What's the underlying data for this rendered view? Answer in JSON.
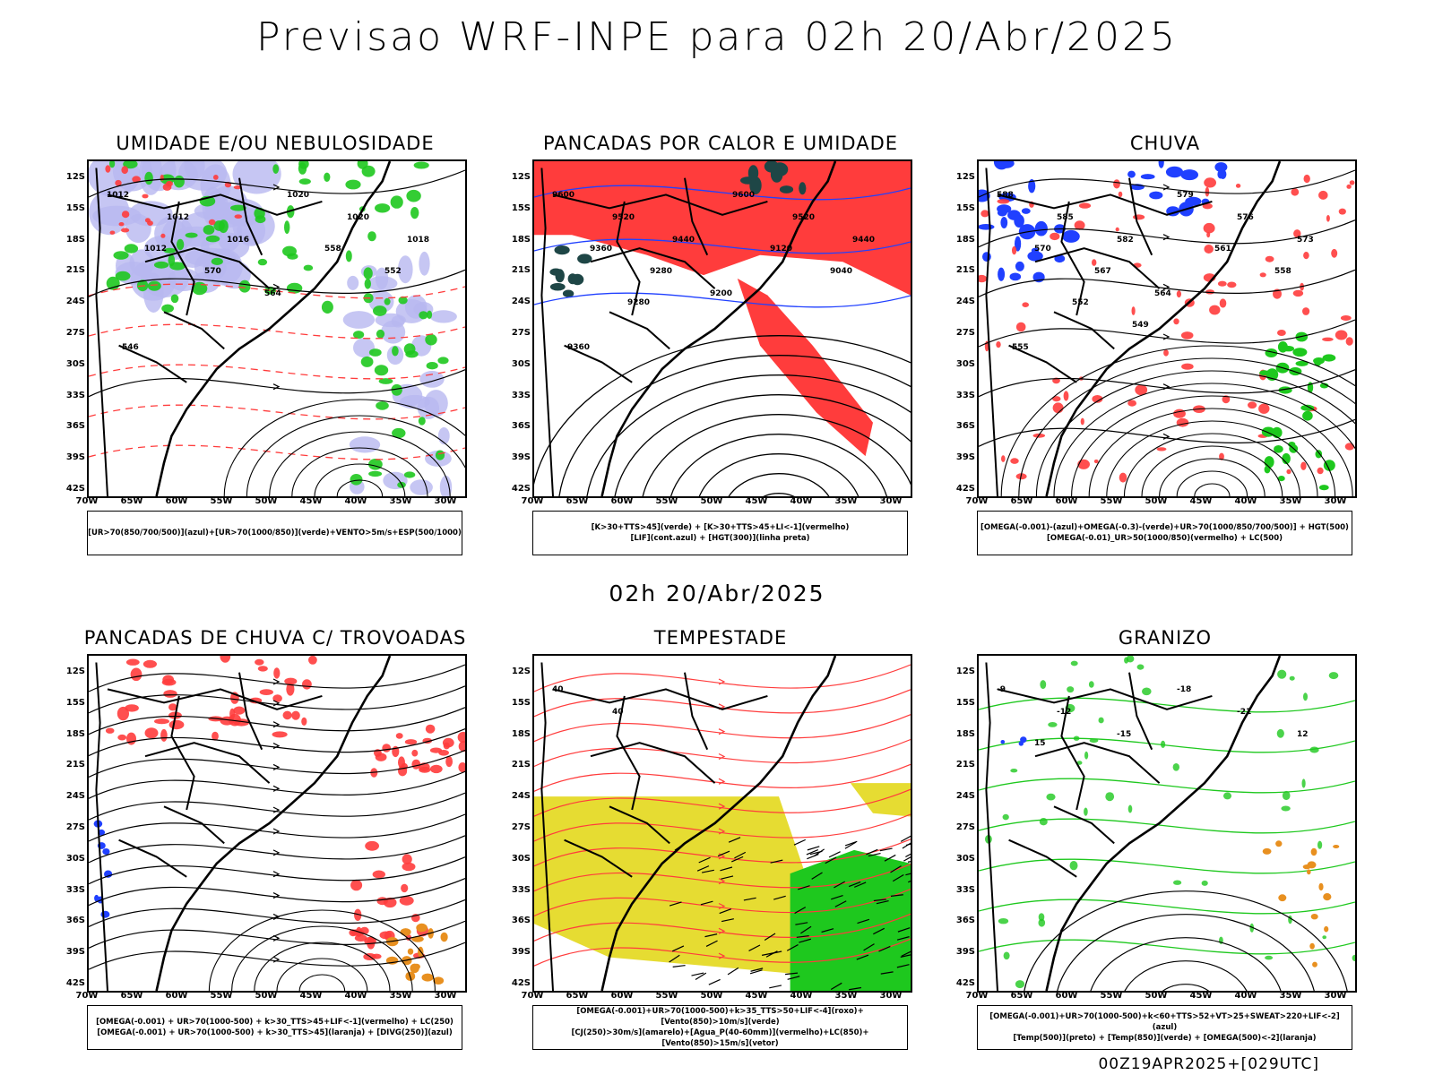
{
  "title": "Previsao WRF-INPE  para 02h 20/Abr/2025",
  "mid_time": "02h 20/Abr/2025",
  "footer": "00Z19APR2025+[029UTC]",
  "lat_ticks": [
    "12S",
    "15S",
    "18S",
    "21S",
    "24S",
    "27S",
    "30S",
    "33S",
    "36S",
    "39S",
    "42S"
  ],
  "lon_ticks": [
    "70W",
    "65W",
    "60W",
    "55W",
    "50W",
    "45W",
    "40W",
    "35W",
    "30W"
  ],
  "colors": {
    "red": "#ff3c3c",
    "green": "#1ec81e",
    "blue": "#2040ff",
    "lavender": "#b8b8f0",
    "yellow": "#e6dc32",
    "darkteal": "#1e4646",
    "orange": "#e89020"
  },
  "panels": [
    {
      "id": "umidade",
      "title": "UMIDADE E/OU NEBULOSIDADE",
      "legend": [
        "[UR>70(850/700/500)](azul)+[UR>70(1000/850)](verde)+VENTO>5m/s+ESP(500/1000)"
      ],
      "labels": [
        "1012",
        "1012",
        "1016",
        "1020",
        "1020",
        "1018",
        "1012",
        "570",
        "564",
        "558",
        "552",
        "546"
      ]
    },
    {
      "id": "pancadas-calor",
      "title": "PANCADAS POR CALOR E UMIDADE",
      "legend": [
        "[K>30+TTS>45](verde) + [K>30+TTS>45+LI<-1](vermelho)",
        "[LIF](cont.azul) + [HGT(300)](linha preta)"
      ],
      "labels": [
        "9600",
        "9520",
        "9440",
        "9600",
        "9520",
        "9440",
        "9360",
        "9280",
        "9200",
        "9120",
        "9040",
        "9360",
        "9280"
      ]
    },
    {
      "id": "chuva",
      "title": "CHUVA",
      "legend": [
        "[OMEGA(-0.001)-(azul)+OMEGA(-0.3)-(verde)+UR>70(1000/850/700/500)] + HGT(500)",
        "[OMEGA(-0.01)_UR>50(1000/850)(vermelho) + LC(500)"
      ],
      "labels": [
        "588",
        "585",
        "582",
        "579",
        "576",
        "573",
        "570",
        "567",
        "564",
        "561",
        "558",
        "555",
        "552",
        "549"
      ]
    },
    {
      "id": "pancadas-trovoadas",
      "title": "PANCADAS DE CHUVA C/ TROVOADAS",
      "legend": [
        "[OMEGA(-0.001) + UR>70(1000-500) + k>30_TTS>45+LIF<-1](vermelho) + LC(250)",
        "[OMEGA(-0.001) + UR>70(1000-500) + k>30_TTS>45](laranja) + [DIVG(250)](azul)"
      ],
      "labels": []
    },
    {
      "id": "tempestade",
      "title": "TEMPESTADE",
      "legend": [
        "[OMEGA(-0.001)+UR>70(1000-500)+k>35_TTS>50+LIF<-4](roxo)+[Vento(850)>10m/s](verde)",
        "[CJ(250)>30m/s](amarelo)+[Agua_P(40-60mm)](vermelho)+LC(850)+[Vento(850)>15m/s](vetor)"
      ],
      "labels": [
        "40",
        "40"
      ]
    },
    {
      "id": "granizo",
      "title": "GRANIZO",
      "legend": [
        "[OMEGA(-0.001)+UR>70(1000-500)+k<60+TTS>52+VT>25+SWEAT>220+LIF<-2](azul)",
        "[Temp(500)](preto) + [Temp(850)](verde) + [OMEGA(500)<-2](laranja)"
      ],
      "labels": [
        "-9",
        "-12",
        "-15",
        "-18",
        "-21",
        "12",
        "15"
      ]
    }
  ]
}
